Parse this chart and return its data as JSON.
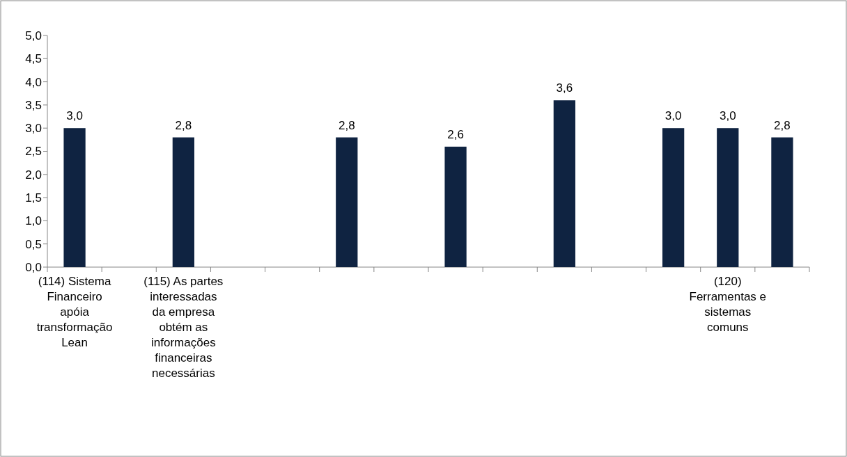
{
  "chart_data": {
    "type": "bar",
    "categories": [
      "(114) Sistema Financeiro apóia transformação Lean",
      null,
      "(115) As partes interessadas da empresa obtém as informações financeiras necessárias",
      null,
      null,
      null,
      null,
      null,
      null,
      null,
      null,
      null,
      "(120) Ferramentas e sistemas comuns",
      null
    ],
    "values": [
      3.0,
      null,
      2.8,
      null,
      null,
      2.8,
      null,
      2.6,
      null,
      3.6,
      null,
      3.0,
      3.0,
      2.8
    ],
    "value_labels": [
      "3,0",
      null,
      "2,8",
      null,
      null,
      "2,8",
      null,
      "2,6",
      null,
      "3,6",
      null,
      "3,0",
      "3,0",
      "2,8"
    ],
    "color": "#0f2341",
    "ylim": [
      0,
      5
    ],
    "yticks": [
      {
        "value": 0,
        "label": "0,0"
      },
      {
        "value": 0.5,
        "label": "0,5"
      },
      {
        "value": 1,
        "label": "1,0"
      },
      {
        "value": 1.5,
        "label": "1,5"
      },
      {
        "value": 2,
        "label": "2,0"
      },
      {
        "value": 2.5,
        "label": "2,5"
      },
      {
        "value": 3,
        "label": "3,0"
      },
      {
        "value": 3.5,
        "label": "3,5"
      },
      {
        "value": 4,
        "label": "4,0"
      },
      {
        "value": 4.5,
        "label": "4,5"
      },
      {
        "value": 5,
        "label": "5,0"
      }
    ],
    "grid": false
  }
}
